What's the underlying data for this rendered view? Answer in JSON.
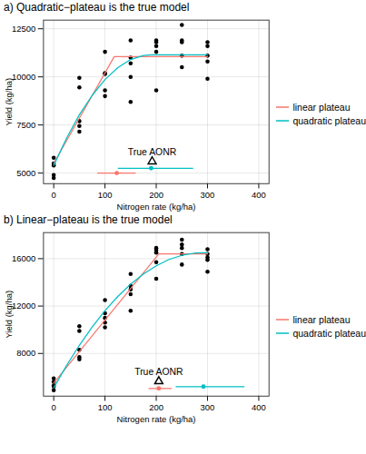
{
  "chart_data": [
    {
      "type": "scatter",
      "title": "a) Quadratic−plateau is the true model",
      "xlabel": "Nitrogen rate (kg/ha)",
      "ylabel": "Yield (kg/ha)",
      "xlim": [
        -20,
        420
      ],
      "xticks": [
        0,
        100,
        200,
        300,
        400
      ],
      "ylim": [
        4450,
        12950
      ],
      "yticks": [
        5000,
        7500,
        10000,
        12500
      ],
      "grid": true,
      "legend": "right",
      "points": {
        "color": "#000000",
        "x": [
          0,
          0,
          0,
          0,
          0,
          50,
          50,
          50,
          50,
          50,
          100,
          100,
          100,
          100,
          100,
          150,
          150,
          150,
          150,
          150,
          200,
          200,
          200,
          200,
          200,
          250,
          250,
          250,
          250,
          250,
          300,
          300,
          300,
          300,
          300
        ],
        "y": [
          5800,
          5500,
          5400,
          4900,
          4750,
          9950,
          9450,
          7700,
          7450,
          7150,
          11300,
          10200,
          10150,
          9300,
          9000,
          11900,
          11000,
          10700,
          10000,
          8700,
          11900,
          11800,
          11600,
          11300,
          9300,
          12700,
          11900,
          11800,
          11100,
          10500,
          11800,
          11600,
          11100,
          10800,
          9900
        ]
      },
      "series": [
        {
          "name": "linear plateau",
          "color": "#F8766D",
          "type": "line",
          "x": [
            0,
            118,
            300
          ],
          "values": [
            5500,
            11050,
            11050
          ]
        },
        {
          "name": "quadratic plateau",
          "color": "#00BFC4",
          "type": "line",
          "x": [
            0,
            25,
            50,
            75,
            100,
            125,
            150,
            175,
            190,
            200,
            250,
            300
          ],
          "values": [
            5400,
            6810,
            8030,
            9040,
            9860,
            10480,
            10900,
            11110,
            11150,
            11150,
            11150,
            11150
          ]
        }
      ],
      "aonr_estimates": [
        {
          "series": "linear plateau",
          "x": 123,
          "y": 5000,
          "x_low": 85,
          "x_high": 160
        },
        {
          "series": "quadratic plateau",
          "x": 190,
          "y": 5250,
          "x_low": 125,
          "x_high": 272
        }
      ],
      "true_aonr": {
        "label": "True AONR",
        "x": 192,
        "y": 5600,
        "marker": "triangle"
      }
    },
    {
      "type": "scatter",
      "title": "b) Linear−plateau is the true model",
      "xlabel": "Nitrogen rate (kg/ha)",
      "ylabel": "Yield (kg/ha)",
      "xlim": [
        -20,
        420
      ],
      "xticks": [
        0,
        100,
        200,
        300,
        400
      ],
      "ylim": [
        4400,
        18200
      ],
      "yticks": [
        8000,
        12000,
        16000
      ],
      "grid": true,
      "legend": "right",
      "points": {
        "color": "#000000",
        "x": [
          0,
          0,
          0,
          0,
          0,
          50,
          50,
          50,
          50,
          50,
          100,
          100,
          100,
          100,
          100,
          150,
          150,
          150,
          150,
          150,
          200,
          200,
          200,
          200,
          200,
          250,
          250,
          250,
          250,
          250,
          300,
          300,
          300,
          300,
          300
        ],
        "y": [
          5900,
          5600,
          5300,
          5200,
          4900,
          10300,
          9900,
          8300,
          7700,
          7500,
          12500,
          11400,
          11000,
          10600,
          10200,
          14700,
          13700,
          13400,
          13000,
          11600,
          16900,
          16700,
          16500,
          15700,
          14300,
          17600,
          17200,
          16900,
          16400,
          15500,
          16800,
          16400,
          16100,
          15900,
          14900
        ]
      },
      "series": [
        {
          "name": "linear plateau",
          "color": "#F8766D",
          "type": "line",
          "x": [
            0,
            205,
            300
          ],
          "values": [
            5500,
            16400,
            16400
          ]
        },
        {
          "name": "quadratic plateau",
          "color": "#00BFC4",
          "type": "line",
          "x": [
            0,
            25,
            50,
            75,
            100,
            125,
            150,
            175,
            200,
            225,
            250,
            275,
            290,
            300
          ],
          "values": [
            5100,
            6980,
            8690,
            10230,
            11610,
            12810,
            13840,
            14710,
            15400,
            15930,
            16280,
            16470,
            16500,
            16500
          ]
        }
      ],
      "aonr_estimates": [
        {
          "series": "linear plateau",
          "x": 205,
          "y": 5050,
          "x_low": 185,
          "x_high": 230
        },
        {
          "series": "quadratic plateau",
          "x": 292,
          "y": 5200,
          "x_low": 238,
          "x_high": 372
        }
      ],
      "true_aonr": {
        "label": "True AONR",
        "x": 205,
        "y": 5650,
        "marker": "triangle"
      }
    }
  ]
}
